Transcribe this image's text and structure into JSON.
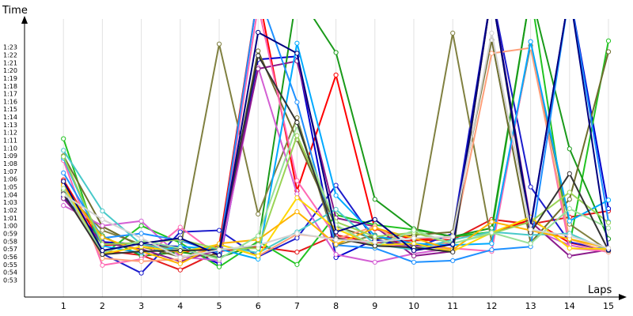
{
  "chart_data": {
    "type": "line",
    "ylabel": "Time",
    "xlabel": "Laps",
    "x": [
      1,
      2,
      3,
      4,
      5,
      6,
      7,
      8,
      9,
      10,
      11,
      12,
      13,
      14,
      15
    ],
    "xlim": [
      0,
      15
    ],
    "ylim": [
      51.5,
      86
    ],
    "grid": true,
    "legend": "none",
    "y_tick_values": [
      53,
      54,
      55,
      56,
      57,
      58,
      59,
      60,
      61,
      62,
      63,
      64,
      65,
      66,
      67,
      68,
      69,
      70,
      71,
      72,
      73,
      74,
      75,
      76,
      77,
      78,
      79,
      80,
      81,
      82,
      83
    ],
    "y_tick_labels": [
      "0:53",
      "0:54",
      "0:55",
      "0:56",
      "0:57",
      "0:58",
      "0:59",
      "1:00",
      "1:01",
      "1:02",
      "1:03",
      "1:04",
      "1:05",
      "1:06",
      "1:07",
      "1:08",
      "1:09",
      "1:10",
      "1:11",
      "1:12",
      "1:13",
      "1:14",
      "1:15",
      "1:16",
      "1:17",
      "1:18",
      "1:19",
      "1:20",
      "1:21",
      "1:22",
      "1:23"
    ],
    "series": [
      {
        "color": "#e41a1c",
        "values": [
          65.6,
          56.8,
          56.2,
          54.3,
          56.7,
          57.3,
          56.6,
          58.8,
          57.8,
          58.1,
          58.2,
          60.8,
          60.2,
          61.1,
          61.9
        ]
      },
      {
        "color": "#ff0000",
        "values": [
          65.9,
          57.5,
          57.6,
          56.5,
          57.4,
          90.0,
          64.5,
          79.4,
          59.6,
          58.2,
          58.6,
          59.0,
          60.8,
          57.8,
          56.8
        ]
      },
      {
        "color": "#1c1ccc",
        "values": [
          64.2,
          56.4,
          53.9,
          59.2,
          59.4,
          56.0,
          58.4,
          65.2,
          58.1,
          57.1,
          59.0,
          90.0,
          65.0,
          57.9,
          56.8
        ]
      },
      {
        "color": "#0000cd",
        "values": [
          63.8,
          57.9,
          57.6,
          57.3,
          55.1,
          81.4,
          81.8,
          55.9,
          58.2,
          57.4,
          57.6,
          90.0,
          59.8,
          90.0,
          62.2
        ]
      },
      {
        "color": "#22c322",
        "values": [
          71.2,
          56.2,
          60.0,
          57.8,
          54.7,
          58.0,
          55.0,
          61.4,
          60.1,
          59.5,
          58.6,
          59.2,
          90.0,
          57.5,
          83.8
        ]
      },
      {
        "color": "#1a9a1a",
        "values": [
          64.6,
          58.7,
          56.1,
          56.6,
          55.9,
          57.6,
          90.0,
          82.3,
          63.4,
          59.6,
          58.6,
          59.7,
          90.0,
          69.9,
          58.3
        ]
      },
      {
        "color": "#808040",
        "values": [
          64.5,
          59.4,
          57.6,
          57.0,
          83.4,
          61.5,
          73.9,
          57.5,
          58.8,
          56.9,
          84.8,
          57.9,
          83.2,
          60.2,
          56.8
        ]
      },
      {
        "color": "#6e6e2e",
        "values": [
          69.0,
          59.9,
          57.3,
          56.0,
          56.3,
          82.5,
          71.1,
          59.9,
          58.3,
          58.8,
          59.2,
          83.9,
          57.8,
          63.4,
          82.4
        ]
      },
      {
        "color": "#d35fd3",
        "values": [
          62.6,
          60.0,
          60.6,
          56.0,
          55.5,
          80.4,
          64.1,
          56.3,
          55.3,
          56.4,
          57.1,
          90.0,
          59.6,
          57.5,
          56.6
        ]
      },
      {
        "color": "#8b1a8b",
        "values": [
          63.5,
          57.8,
          57.0,
          55.4,
          56.9,
          80.2,
          81.2,
          61.0,
          59.9,
          56.1,
          56.7,
          90.0,
          60.5,
          56.1,
          56.9
        ]
      },
      {
        "color": "#ff69b4",
        "values": [
          68.4,
          54.9,
          55.7,
          59.8,
          56.1,
          88.3,
          65.8,
          58.6,
          57.5,
          57.3,
          57.1,
          56.7,
          83.7,
          57.1,
          56.7
        ]
      },
      {
        "color": "#ffa07a",
        "values": [
          65.1,
          55.8,
          55.4,
          55.7,
          57.6,
          56.1,
          58.9,
          58.3,
          59.9,
          57.1,
          57.9,
          82.2,
          82.9,
          58.3,
          56.6
        ]
      },
      {
        "color": "#1e90ff",
        "values": [
          66.8,
          58.4,
          59.0,
          58.1,
          56.5,
          90.0,
          75.9,
          57.5,
          57.1,
          55.3,
          55.5,
          56.9,
          57.3,
          90.0,
          60.5
        ]
      },
      {
        "color": "#00aaff",
        "values": [
          68.7,
          57.4,
          56.5,
          57.3,
          57.0,
          55.7,
          83.5,
          63.9,
          58.7,
          57.7,
          57.5,
          57.7,
          83.7,
          60.6,
          63.3
        ]
      },
      {
        "color": "#48c9c9",
        "values": [
          69.7,
          61.9,
          57.6,
          56.7,
          57.5,
          56.5,
          59.2,
          62.1,
          57.6,
          56.9,
          58.2,
          59.2,
          58.8,
          59.0,
          56.8
        ]
      },
      {
        "color": "#ffd700",
        "values": [
          65.4,
          56.4,
          57.3,
          56.6,
          57.6,
          56.1,
          63.6,
          59.6,
          57.5,
          57.7,
          56.7,
          59.1,
          61.1,
          57.1,
          57.0
        ]
      },
      {
        "color": "#ffb300",
        "values": [
          65.2,
          58.5,
          56.7,
          55.1,
          57.7,
          58.2,
          61.8,
          57.6,
          59.7,
          58.4,
          56.9,
          60.5,
          59.4,
          58.3,
          57.1
        ]
      },
      {
        "color": "#9ad456",
        "values": [
          68.9,
          57.6,
          57.8,
          58.2,
          57.0,
          57.1,
          71.6,
          60.5,
          58.6,
          59.1,
          57.7,
          59.0,
          60.5,
          64.3,
          60.4
        ]
      },
      {
        "color": "#98e098",
        "values": [
          64.8,
          56.5,
          58.1,
          57.1,
          55.7,
          58.7,
          72.9,
          60.1,
          57.3,
          59.4,
          57.7,
          59.1,
          57.7,
          62.2,
          59.7
        ]
      },
      {
        "color": "#333333",
        "values": [
          64.1,
          56.3,
          56.7,
          56.8,
          56.9,
          81.9,
          73.3,
          58.4,
          57.4,
          57.2,
          56.6,
          90.0,
          59.1,
          66.7,
          56.8
        ]
      },
      {
        "color": "#000080",
        "values": [
          65.7,
          56.8,
          57.7,
          58.4,
          56.2,
          84.9,
          82.2,
          59.2,
          60.8,
          56.8,
          57.6,
          90.0,
          60.0,
          90.0,
          56.9
        ]
      },
      {
        "color": "#d3d3d3",
        "values": [
          64.0,
          60.8,
          58.4,
          55.9,
          56.9,
          57.5,
          59.0,
          58.2,
          57.9,
          58.4,
          58.6,
          84.8,
          59.5,
          58.7,
          57.1
        ]
      }
    ]
  }
}
